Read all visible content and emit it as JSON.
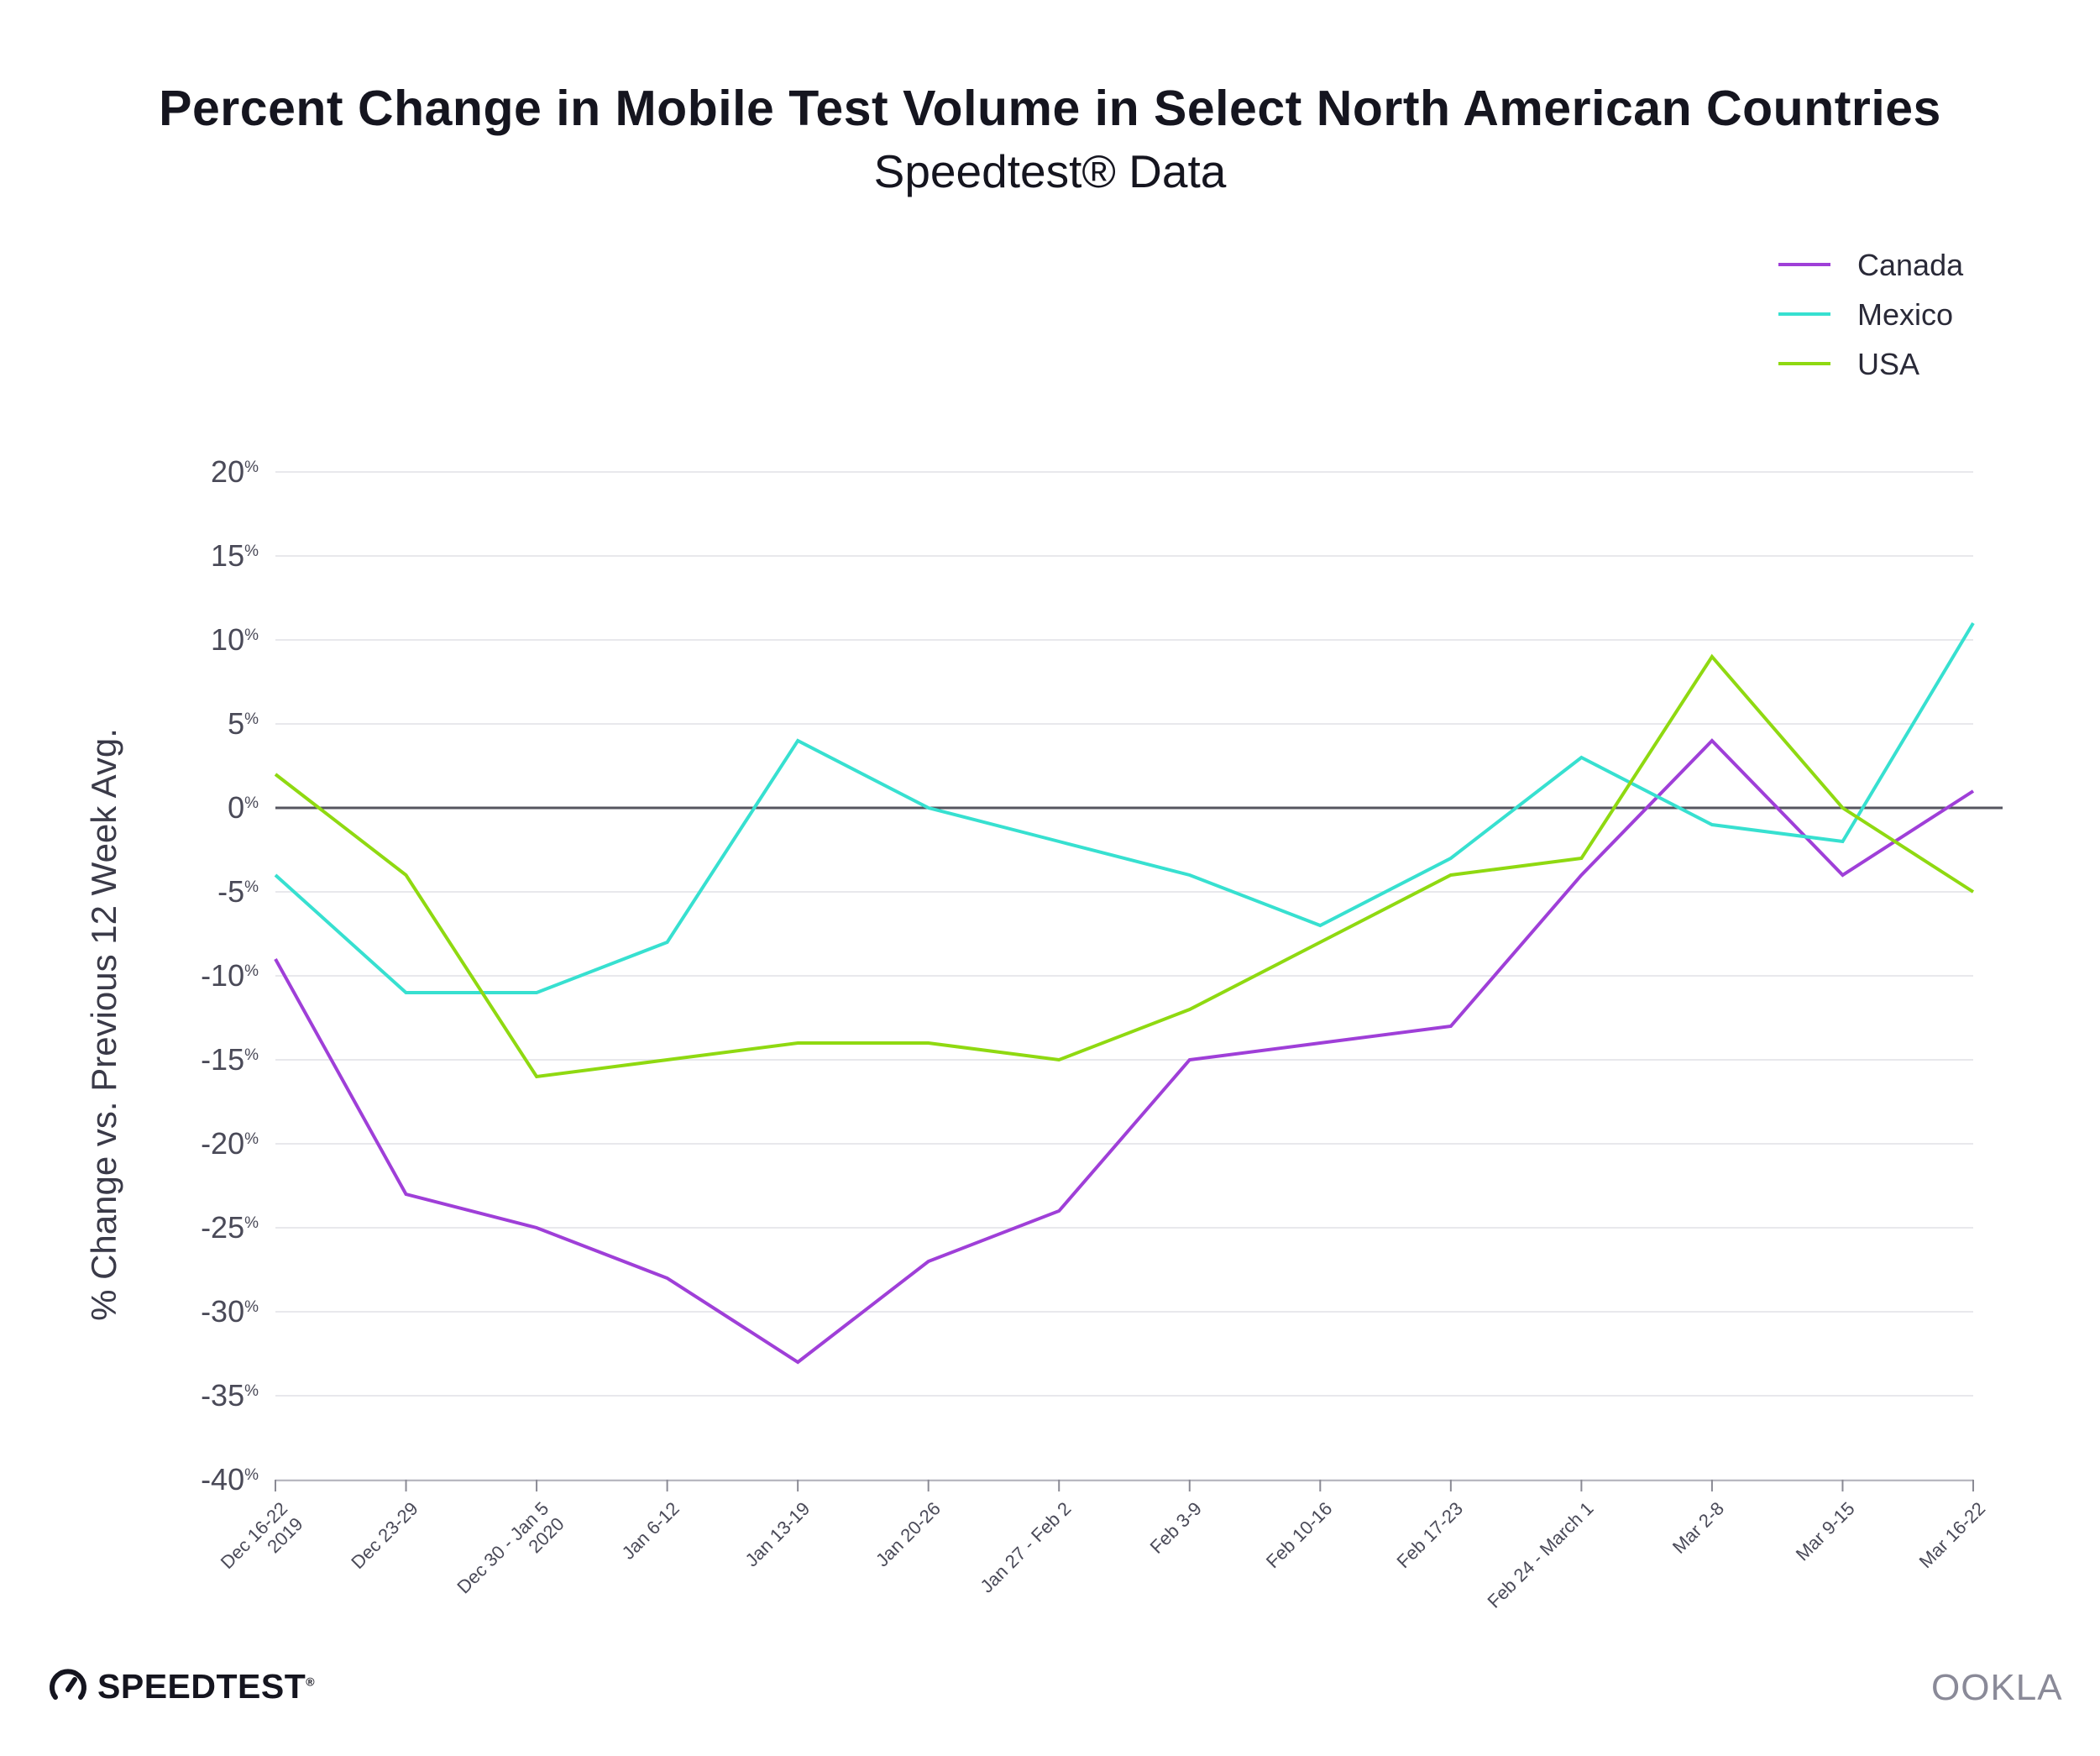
{
  "chart_data": {
    "type": "line",
    "title": "Percent Change in Mobile Test Volume in Select North American Countries",
    "subtitle": "Speedtest® Data",
    "ylabel": "% Change vs. Previous 12 Week Avg.",
    "xlabel": "",
    "ylim": [
      -40,
      20
    ],
    "yticks": [
      20,
      15,
      10,
      5,
      0,
      -5,
      -10,
      -15,
      -20,
      -25,
      -30,
      -35,
      -40
    ],
    "grid": true,
    "legend_position": "top-right",
    "categories": [
      [
        "Dec 16-22",
        "2019"
      ],
      [
        "Dec 23-29"
      ],
      [
        "Dec 30 - Jan 5",
        "2020"
      ],
      [
        "Jan 6-12"
      ],
      [
        "Jan 13-19"
      ],
      [
        "Jan 20-26"
      ],
      [
        "Jan 27 - Feb 2"
      ],
      [
        "Feb 3-9"
      ],
      [
        "Feb 10-16"
      ],
      [
        "Feb 17-23"
      ],
      [
        "Feb 24 - March 1"
      ],
      [
        "Mar 2-8"
      ],
      [
        "Mar 9-15"
      ],
      [
        "Mar 16-22"
      ]
    ],
    "series": [
      {
        "name": "Canada",
        "color": "#9f3fd8",
        "values": [
          -9,
          -23,
          -25,
          -28,
          -33,
          -27,
          -24,
          -15,
          -14,
          -13,
          -4,
          4,
          -4,
          1
        ]
      },
      {
        "name": "Mexico",
        "color": "#37e0d0",
        "values": [
          -4,
          -11,
          -11,
          -8,
          4,
          0,
          -2,
          -4,
          -7,
          -3,
          3,
          -1,
          -2,
          11
        ]
      },
      {
        "name": "USA",
        "color": "#8fd911",
        "values": [
          2,
          -4,
          -16,
          -15,
          -14,
          -14,
          -15,
          -12,
          -8,
          -4,
          -3,
          9,
          0,
          -5
        ]
      }
    ]
  },
  "branding": {
    "speedtest_logo_text": "SPEEDTEST",
    "speedtest_logo_mark": "®",
    "ookla_logo_text": "OOKLA",
    "speedtest_icon": "speedometer-icon"
  }
}
